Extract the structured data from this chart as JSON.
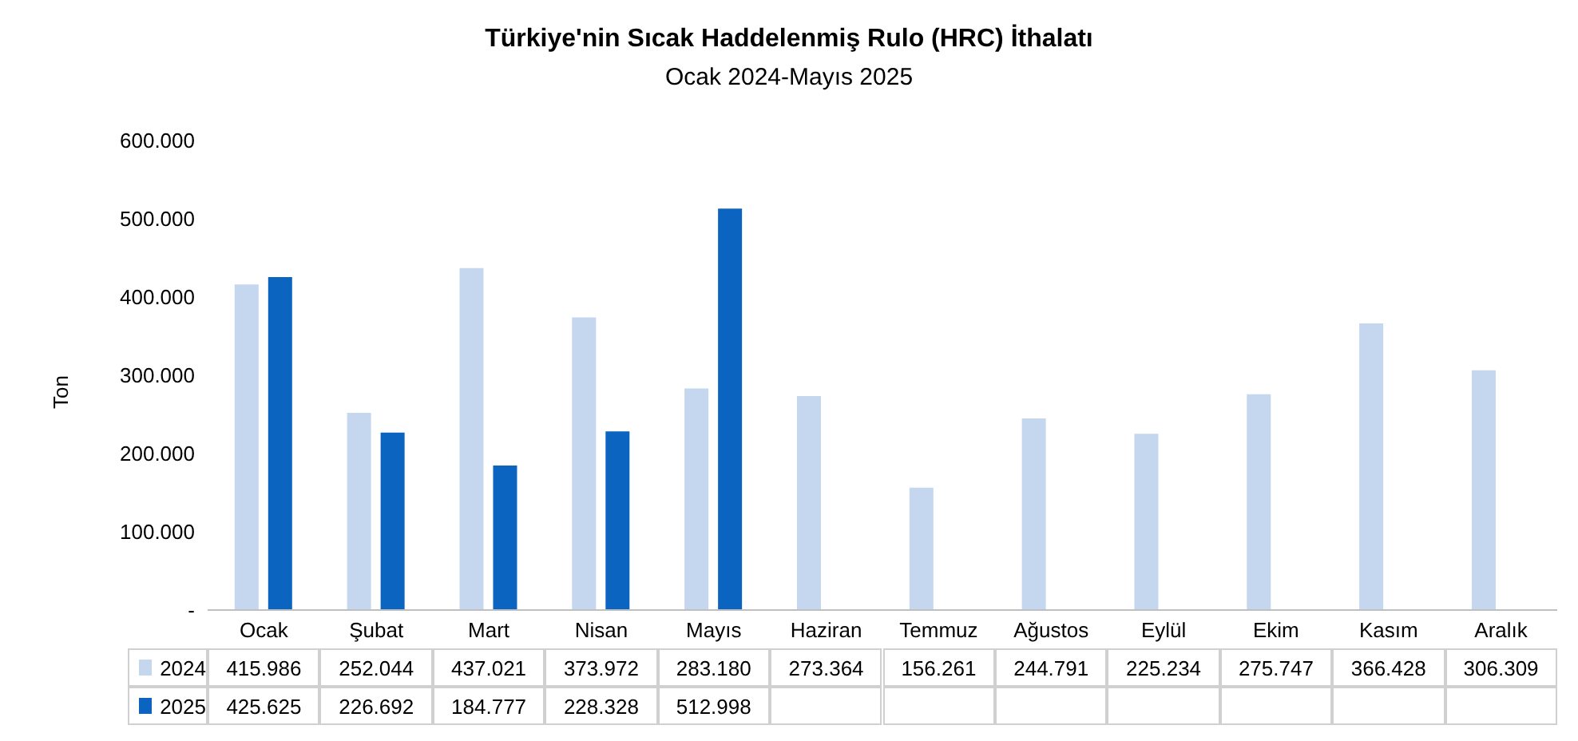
{
  "chart_data": {
    "type": "bar",
    "title": "Türkiye'nin Sıcak Haddelenmiş Rulo (HRC) İthalatı",
    "subtitle": "Ocak 2024-Mayıs 2025",
    "ylabel": "Ton",
    "categories": [
      "Ocak",
      "Şubat",
      "Mart",
      "Nisan",
      "Mayıs",
      "Haziran",
      "Temmuz",
      "Ağustos",
      "Eylül",
      "Ekim",
      "Kasım",
      "Aralık"
    ],
    "series": [
      {
        "name": "2024",
        "color": "#c5d6ef",
        "values": [
          415986,
          252044,
          437021,
          373972,
          283180,
          273364,
          156261,
          244791,
          225234,
          275747,
          366428,
          306309
        ],
        "value_labels": [
          "415.986",
          "252.044",
          "437.021",
          "373.972",
          "283.180",
          "273.364",
          "156.261",
          "244.791",
          "225.234",
          "275.747",
          "366.428",
          "306.309"
        ]
      },
      {
        "name": "2025",
        "color": "#0b64c0",
        "values": [
          425625,
          226692,
          184777,
          228328,
          512998,
          null,
          null,
          null,
          null,
          null,
          null,
          null
        ],
        "value_labels": [
          "425.625",
          "226.692",
          "184.777",
          "228.328",
          "512.998",
          null,
          null,
          null,
          null,
          null,
          null,
          null
        ]
      }
    ],
    "ylim": [
      0,
      600000
    ],
    "yticks": [
      {
        "value": 0,
        "label": "-"
      },
      {
        "value": 100000,
        "label": "100.000"
      },
      {
        "value": 200000,
        "label": "200.000"
      },
      {
        "value": 300000,
        "label": "300.000"
      },
      {
        "value": 400000,
        "label": "400.000"
      },
      {
        "value": 500000,
        "label": "500.000"
      },
      {
        "value": 600000,
        "label": "600.000"
      }
    ],
    "grid": false,
    "legend": "bottom"
  }
}
